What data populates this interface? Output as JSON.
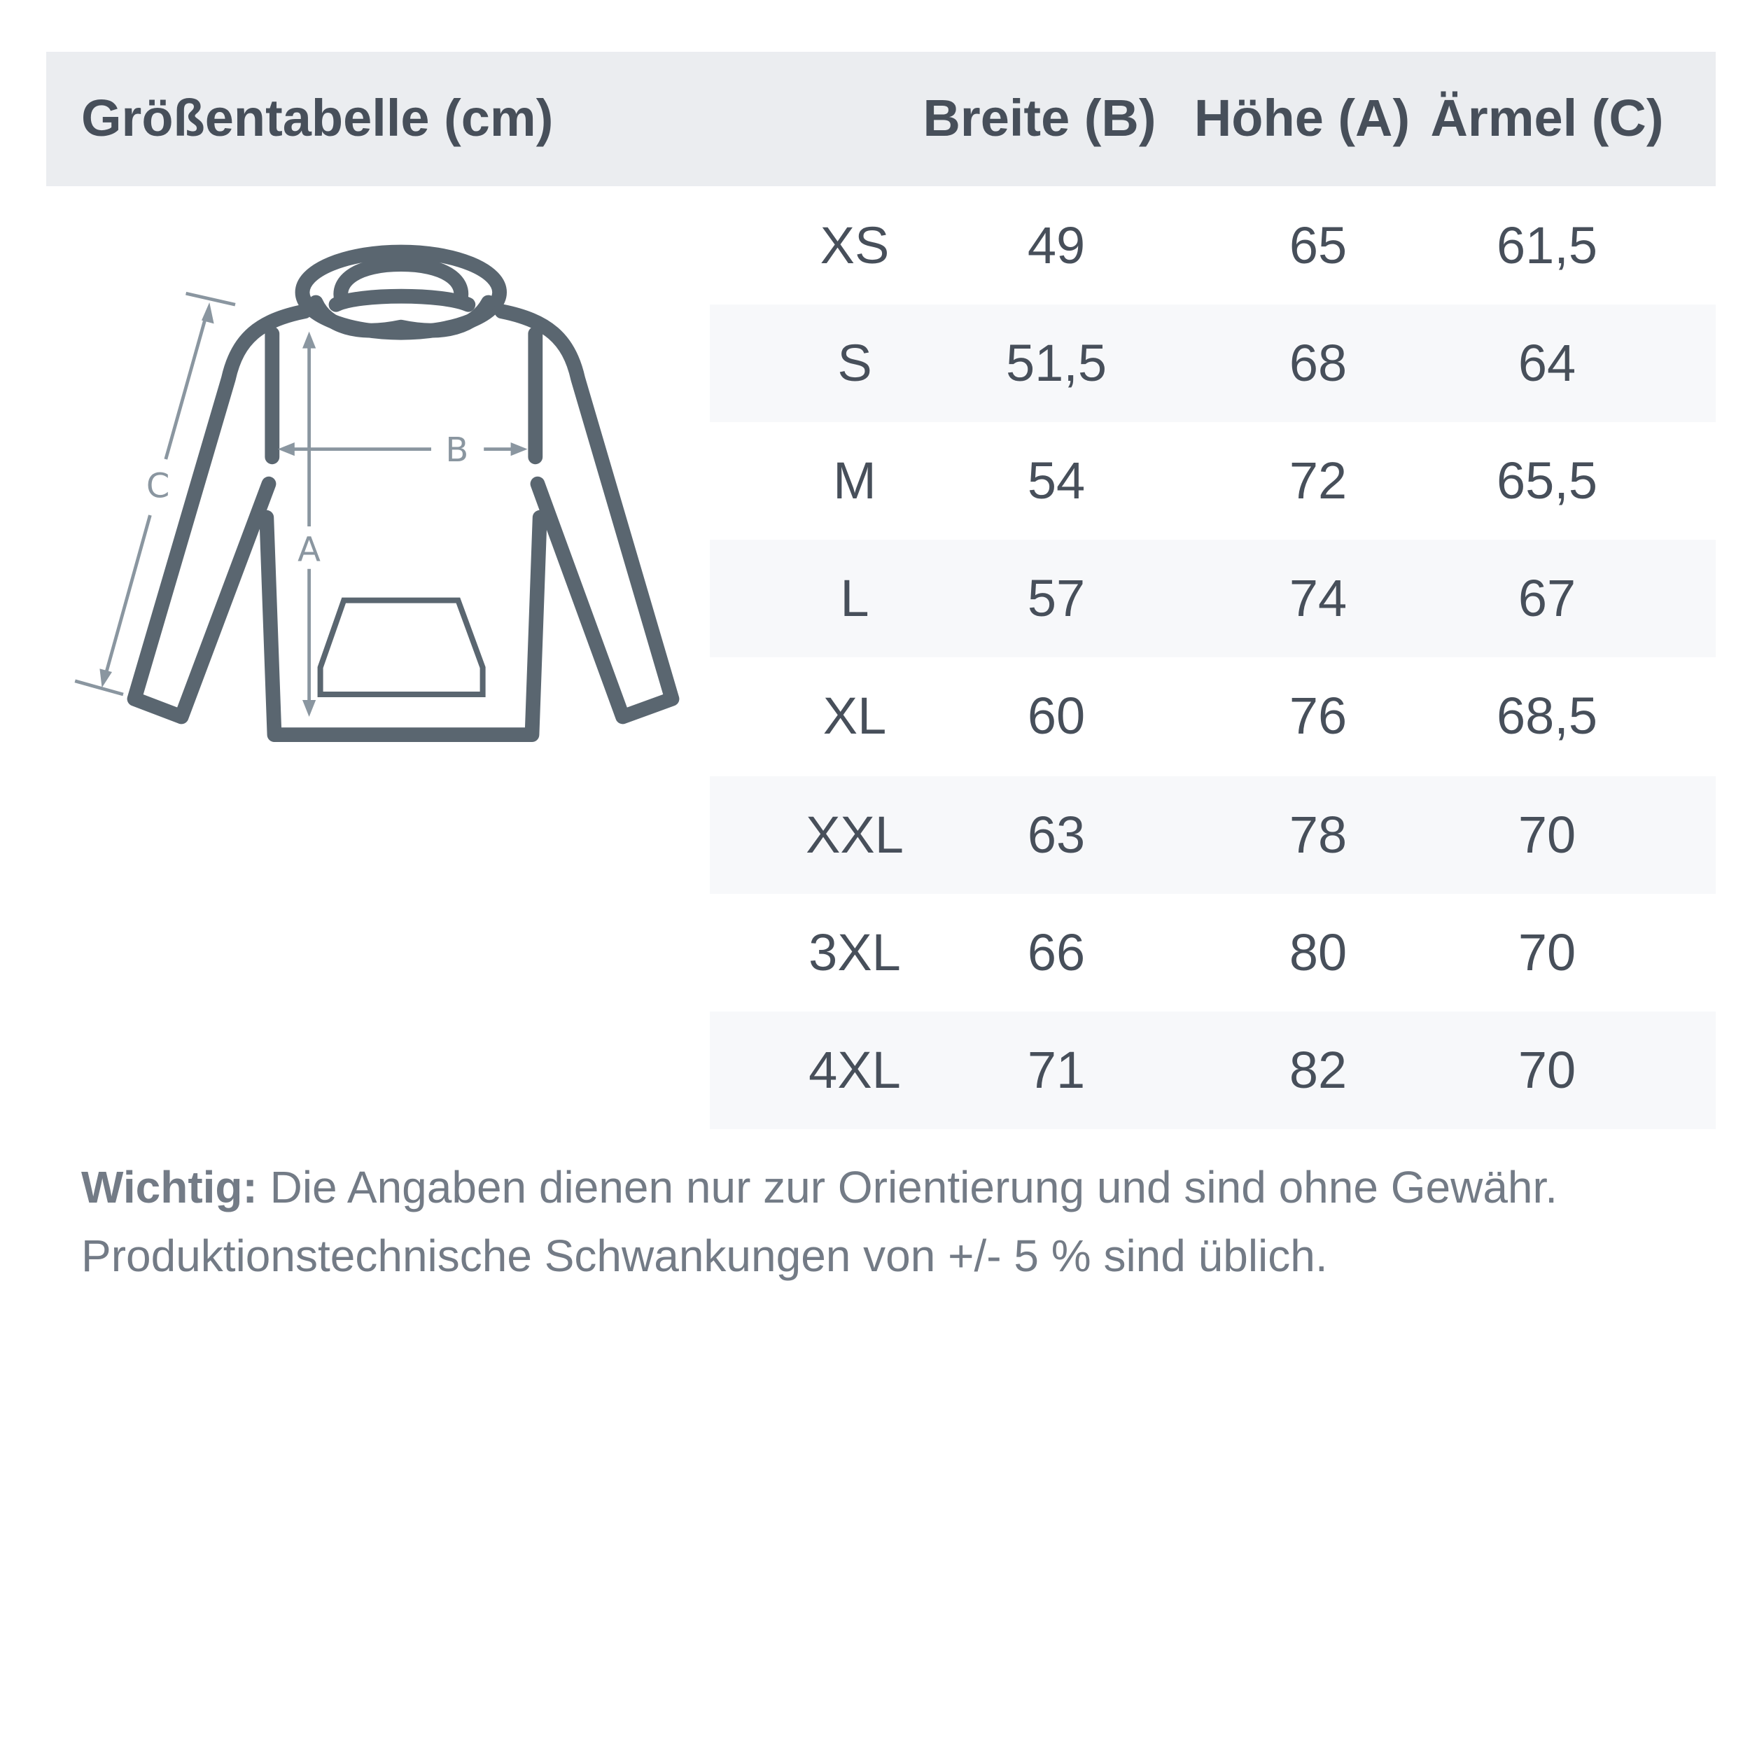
{
  "title": "Größentabelle (cm)",
  "columns": [
    "Breite (B)",
    "Höhe (A)",
    "Ärmel (C)"
  ],
  "rows": [
    {
      "size": "XS",
      "breite": "49",
      "hoehe": "65",
      "aermel": "61,5"
    },
    {
      "size": "S",
      "breite": "51,5",
      "hoehe": "68",
      "aermel": "64"
    },
    {
      "size": "M",
      "breite": "54",
      "hoehe": "72",
      "aermel": "65,5"
    },
    {
      "size": "L",
      "breite": "57",
      "hoehe": "74",
      "aermel": "67"
    },
    {
      "size": "XL",
      "breite": "60",
      "hoehe": "76",
      "aermel": "68,5"
    },
    {
      "size": "XXL",
      "breite": "63",
      "hoehe": "78",
      "aermel": "70"
    },
    {
      "size": "3XL",
      "breite": "66",
      "hoehe": "80",
      "aermel": "70"
    },
    {
      "size": "4XL",
      "breite": "71",
      "hoehe": "82",
      "aermel": "70"
    }
  ],
  "diagram": {
    "label_a": "A",
    "label_b": "B",
    "label_c": "C",
    "icon": "hoodie-icon"
  },
  "note": {
    "bold": "Wichtig:",
    "line1": " Die Angaben dienen nur zur Orientierung und sind ohne Gewähr.",
    "line2": "Produktionstechnische Schwankungen von +/- 5 % sind üblich."
  },
  "colors": {
    "header_bg": "#ebedf0",
    "row_shaded": "#f7f8fa",
    "text": "#474f5a",
    "hoodie": "#5a6670",
    "measure": "#8a96a0"
  }
}
